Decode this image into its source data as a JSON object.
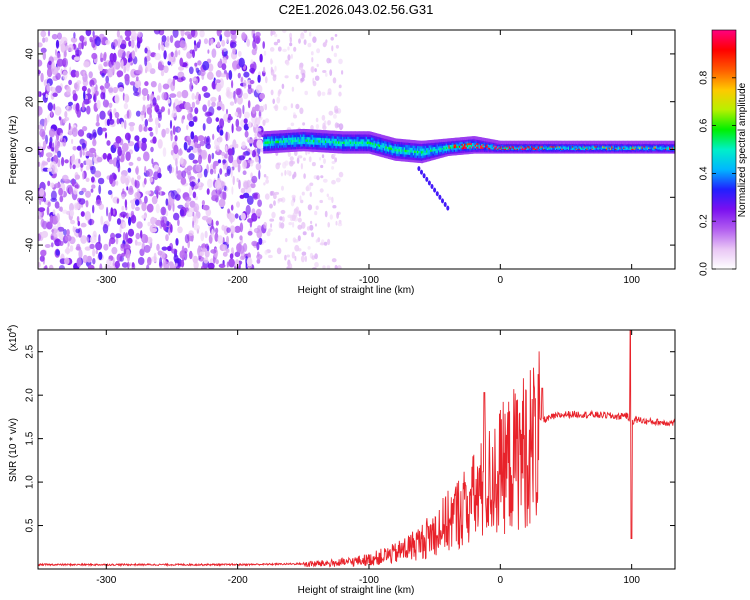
{
  "title": "C2E1.2026.043.02.56.G31",
  "chart_data": [
    {
      "type": "heatmap",
      "name": "spectrogram",
      "xlabel": "Height of straight line (km)",
      "ylabel": "Frequency (Hz)",
      "xlim": [
        -352,
        133
      ],
      "ylim": [
        -50,
        50
      ],
      "xticks": [
        -300,
        -200,
        -100,
        0,
        100
      ],
      "xtick_labels": [
        "-300",
        "-200",
        "-100",
        "0",
        "100"
      ],
      "yticks": [
        -40,
        -20,
        0,
        20,
        40
      ],
      "ytick_labels": [
        "-40",
        "-20",
        "0",
        "20",
        "40"
      ],
      "colorbar": {
        "label": "Normalized spectral amplitude",
        "range": [
          0,
          1
        ],
        "ticks": [
          0.0,
          0.2,
          0.4,
          0.6,
          0.8
        ],
        "tick_labels": [
          "0.0",
          "0.2",
          "0.4",
          "0.6",
          "0.8"
        ],
        "colors": [
          "#ffffff",
          "#e9c6f5",
          "#b25df0",
          "#7a10f0",
          "#2020ff",
          "#00b7ff",
          "#00f0c8",
          "#00f000",
          "#b8f000",
          "#ffc800",
          "#ff5a00",
          "#ff0000",
          "#ff0080"
        ]
      },
      "regions": [
        {
          "x_range": [
            -352,
            -180
          ],
          "desc": "noise",
          "amplitude": 0.25
        },
        {
          "x_range": [
            -180,
            -120
          ],
          "desc": "faint noise",
          "amplitude": 0.1
        },
        {
          "x_range": [
            -180,
            133
          ],
          "desc": "signal band",
          "center_hz": 2,
          "amplitude_max": 1.0
        }
      ],
      "band_path": [
        {
          "x": -180,
          "center": 3,
          "half_width": 4
        },
        {
          "x": -150,
          "center": 4,
          "half_width": 4
        },
        {
          "x": -120,
          "center": 3,
          "half_width": 4
        },
        {
          "x": -100,
          "center": 3,
          "half_width": 4
        },
        {
          "x": -80,
          "center": 0,
          "half_width": 4
        },
        {
          "x": -60,
          "center": -1,
          "half_width": 4
        },
        {
          "x": -40,
          "center": 1,
          "half_width": 3
        },
        {
          "x": -20,
          "center": 2,
          "half_width": 3
        },
        {
          "x": 0,
          "center": 1,
          "half_width": 2
        },
        {
          "x": 50,
          "center": 1,
          "half_width": 2
        },
        {
          "x": 133,
          "center": 1,
          "half_width": 2
        }
      ]
    },
    {
      "type": "line",
      "name": "snr",
      "xlabel": "Height of straight line (km)",
      "ylabel": "SNR (10 * v/v)",
      "scale_label": "(x10",
      "scale_exp": "4",
      "scale_close": ")",
      "xlim": [
        -352,
        133
      ],
      "ylim": [
        0,
        2.75
      ],
      "xticks": [
        -300,
        -200,
        -100,
        0,
        100
      ],
      "xtick_labels": [
        "-300",
        "-200",
        "-100",
        "0",
        "100"
      ],
      "yticks": [
        0.5,
        1.0,
        1.5,
        2.0,
        2.5
      ],
      "ytick_labels": [
        "0.5",
        "1.0",
        "1.5",
        "2.0",
        "2.5"
      ],
      "color": "#e8222a",
      "x": [
        -352,
        -300,
        -250,
        -200,
        -150,
        -120,
        -100,
        -80,
        -60,
        -40,
        -20,
        0,
        20,
        30,
        40,
        50,
        60,
        80,
        90,
        95,
        100,
        105,
        110,
        120,
        133
      ],
      "y": [
        0.05,
        0.05,
        0.05,
        0.05,
        0.06,
        0.08,
        0.12,
        0.2,
        0.35,
        0.6,
        0.9,
        1.25,
        1.55,
        1.7,
        1.75,
        1.78,
        1.78,
        1.77,
        1.75,
        1.78,
        1.7,
        1.72,
        1.7,
        1.69,
        1.68
      ],
      "spikes": [
        {
          "x": -12,
          "y": 2.03
        },
        {
          "x": 32,
          "y": 2.08
        },
        {
          "x": 99,
          "y": 2.75
        },
        {
          "x": 100,
          "y": 0.35
        }
      ]
    }
  ]
}
